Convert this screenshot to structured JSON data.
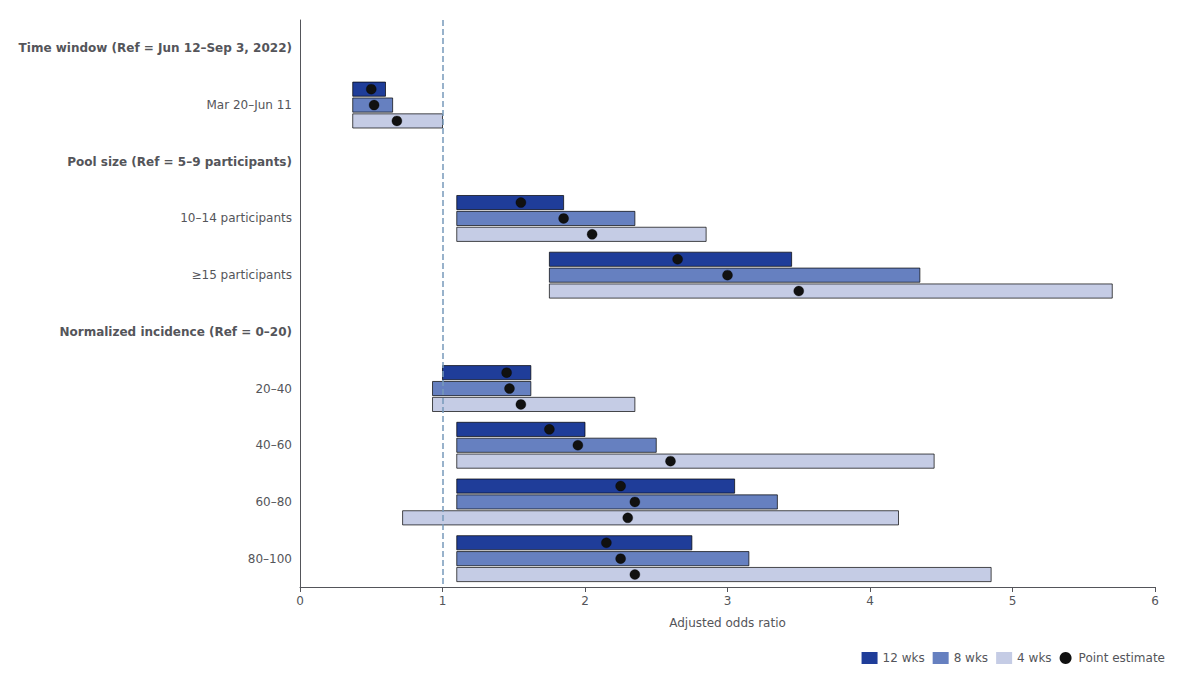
{
  "chart_data": {
    "type": "bar",
    "orientation": "horizontal",
    "xlabel": "Adjusted odds ratio",
    "xlim": [
      0,
      6
    ],
    "xticks": [
      0,
      1,
      2,
      3,
      4,
      5,
      6
    ],
    "legend": "lower right",
    "reference_line": {
      "x": 1.0,
      "color": "#7799BB",
      "line_style": "dashed"
    },
    "sections": [
      {
        "header": "Time window (Ref = Jun 12–Sep 3, 2022)",
        "categories": [
          "Mar 20–Jun 11"
        ]
      },
      {
        "header": "Pool size (Ref = 5–9 participants)",
        "categories": [
          "10–14 participants",
          "≥15 participants"
        ]
      },
      {
        "header": "Normalized incidence (Ref = 0–20)",
        "categories": [
          "20–40",
          "40–60",
          "60–80",
          "80–100"
        ]
      }
    ],
    "series": [
      {
        "name": "12 wks",
        "color": "#1F3D99",
        "low": [
          0.37,
          1.1,
          1.75,
          1.0,
          1.1,
          1.1,
          1.1
        ],
        "high": [
          0.6,
          1.85,
          3.45,
          1.62,
          2.0,
          3.05,
          2.75
        ],
        "values": [
          0.5,
          1.55,
          2.65,
          1.45,
          1.75,
          2.25,
          2.15
        ]
      },
      {
        "name": "8 wks",
        "color": "#6680C0",
        "low": [
          0.37,
          1.1,
          1.75,
          0.93,
          1.1,
          1.1,
          1.1
        ],
        "high": [
          0.65,
          2.35,
          4.35,
          1.62,
          2.5,
          3.35,
          3.15
        ],
        "values": [
          0.52,
          1.85,
          3.0,
          1.47,
          1.95,
          2.35,
          2.25
        ]
      },
      {
        "name": "4 wks",
        "color": "#C5CCE5",
        "low": [
          0.37,
          1.1,
          1.75,
          0.93,
          1.1,
          0.72,
          1.1
        ],
        "high": [
          1.0,
          2.85,
          5.7,
          2.35,
          4.45,
          4.2,
          4.85
        ],
        "values": [
          0.68,
          2.05,
          3.5,
          1.55,
          2.6,
          2.3,
          2.35
        ]
      }
    ],
    "point_series": {
      "name": "Point estimate",
      "color": "#111111",
      "marker": "circle"
    }
  }
}
